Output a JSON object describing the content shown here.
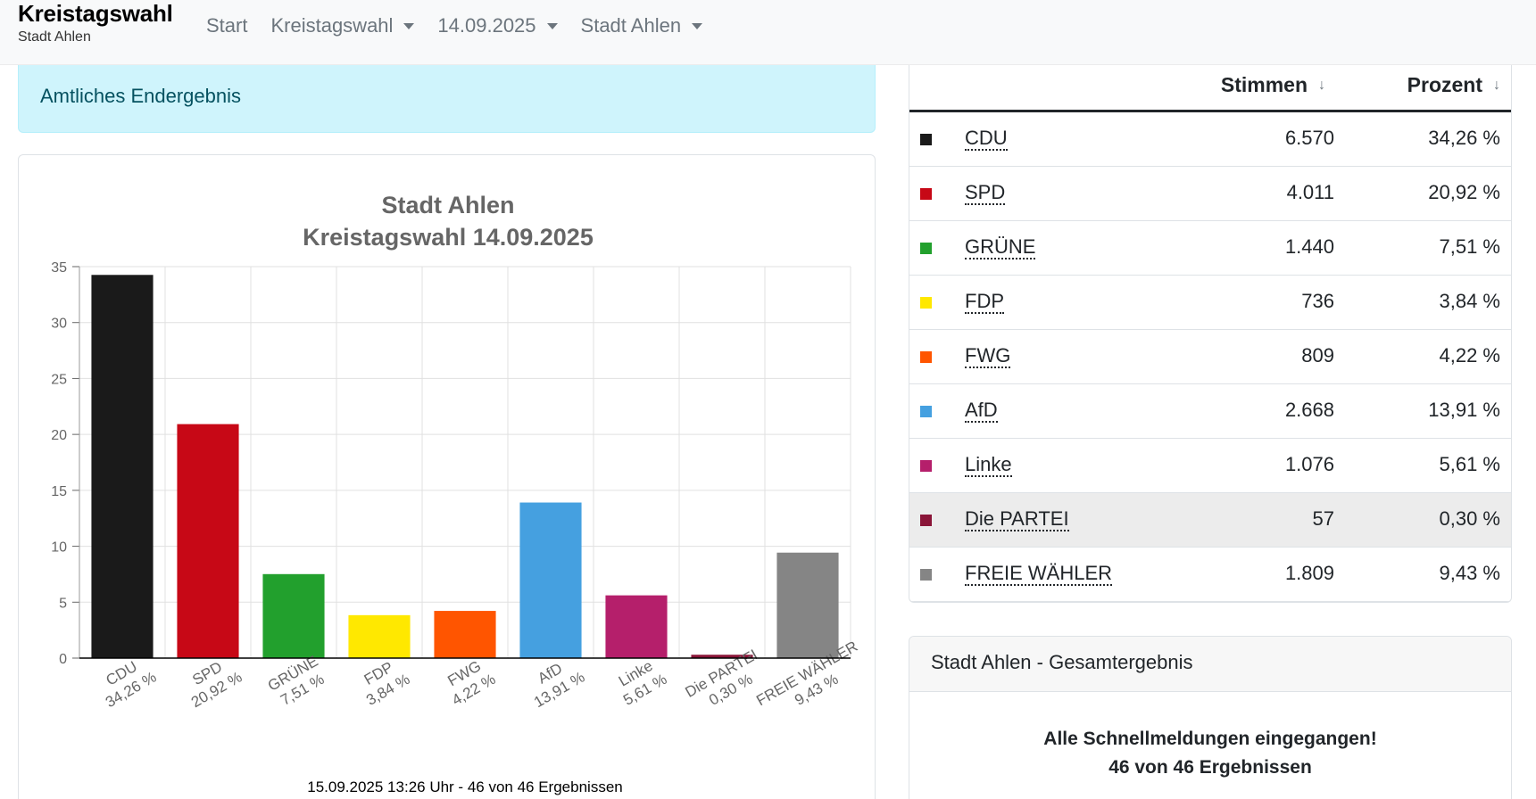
{
  "navbar": {
    "brand_title": "Kreistagswahl",
    "brand_subtitle": "Stadt Ahlen",
    "items": [
      {
        "label": "Start",
        "dropdown": false
      },
      {
        "label": "Kreistagswahl",
        "dropdown": true
      },
      {
        "label": "14.09.2025",
        "dropdown": true
      },
      {
        "label": "Stadt Ahlen",
        "dropdown": true
      }
    ]
  },
  "alert": {
    "text": "Amtliches Endergebnis"
  },
  "chart_data": {
    "type": "bar",
    "title": "Stadt Ahlen",
    "subtitle": "Kreistagswahl 14.09.2025",
    "categories": [
      "CDU",
      "SPD",
      "GRÜNE",
      "FDP",
      "FWG",
      "AfD",
      "Linke",
      "Die PARTEI",
      "FREIE WÄHLER"
    ],
    "category_labels": [
      "34,26 %",
      "20,92 %",
      "7,51 %",
      "3,84 %",
      "4,22 %",
      "13,91 %",
      "5,61 %",
      "0,30 %",
      "9,43 %"
    ],
    "values": [
      34.26,
      20.92,
      7.51,
      3.84,
      4.22,
      13.91,
      5.61,
      0.3,
      9.43
    ],
    "colors": [
      "#1a1a1a",
      "#c70816",
      "#22a02d",
      "#ffe800",
      "#ff5500",
      "#45a0e0",
      "#b51f6b",
      "#8a1538",
      "#858585"
    ],
    "ylim": [
      0,
      35
    ],
    "yticks": [
      0,
      5,
      10,
      15,
      20,
      25,
      30,
      35
    ],
    "grid": true,
    "footer": "15.09.2025 13:26 Uhr - 46 von 46 Ergebnissen"
  },
  "table": {
    "headers": {
      "votes": "Stimmen",
      "percent": "Prozent",
      "sort_icon": "↓"
    },
    "hovered_row": 7,
    "rows": [
      {
        "party": "CDU",
        "votes": "6.570",
        "percent": "34,26 %",
        "color": "#1a1a1a"
      },
      {
        "party": "SPD",
        "votes": "4.011",
        "percent": "20,92 %",
        "color": "#c70816"
      },
      {
        "party": "GRÜNE",
        "votes": "1.440",
        "percent": "7,51 %",
        "color": "#22a02d"
      },
      {
        "party": "FDP",
        "votes": "736",
        "percent": "3,84 %",
        "color": "#ffe800"
      },
      {
        "party": "FWG",
        "votes": "809",
        "percent": "4,22 %",
        "color": "#ff5500"
      },
      {
        "party": "AfD",
        "votes": "2.668",
        "percent": "13,91 %",
        "color": "#45a0e0"
      },
      {
        "party": "Linke",
        "votes": "1.076",
        "percent": "5,61 %",
        "color": "#b51f6b"
      },
      {
        "party": "Die PARTEI",
        "votes": "57",
        "percent": "0,30 %",
        "color": "#8a1538"
      },
      {
        "party": "FREIE WÄHLER",
        "votes": "1.809",
        "percent": "9,43 %",
        "color": "#858585"
      }
    ]
  },
  "summary": {
    "header": "Stadt Ahlen - Gesamtergebnis",
    "line1": "Alle Schnellmeldungen eingegangen!",
    "line2": "46 von 46 Ergebnissen"
  }
}
